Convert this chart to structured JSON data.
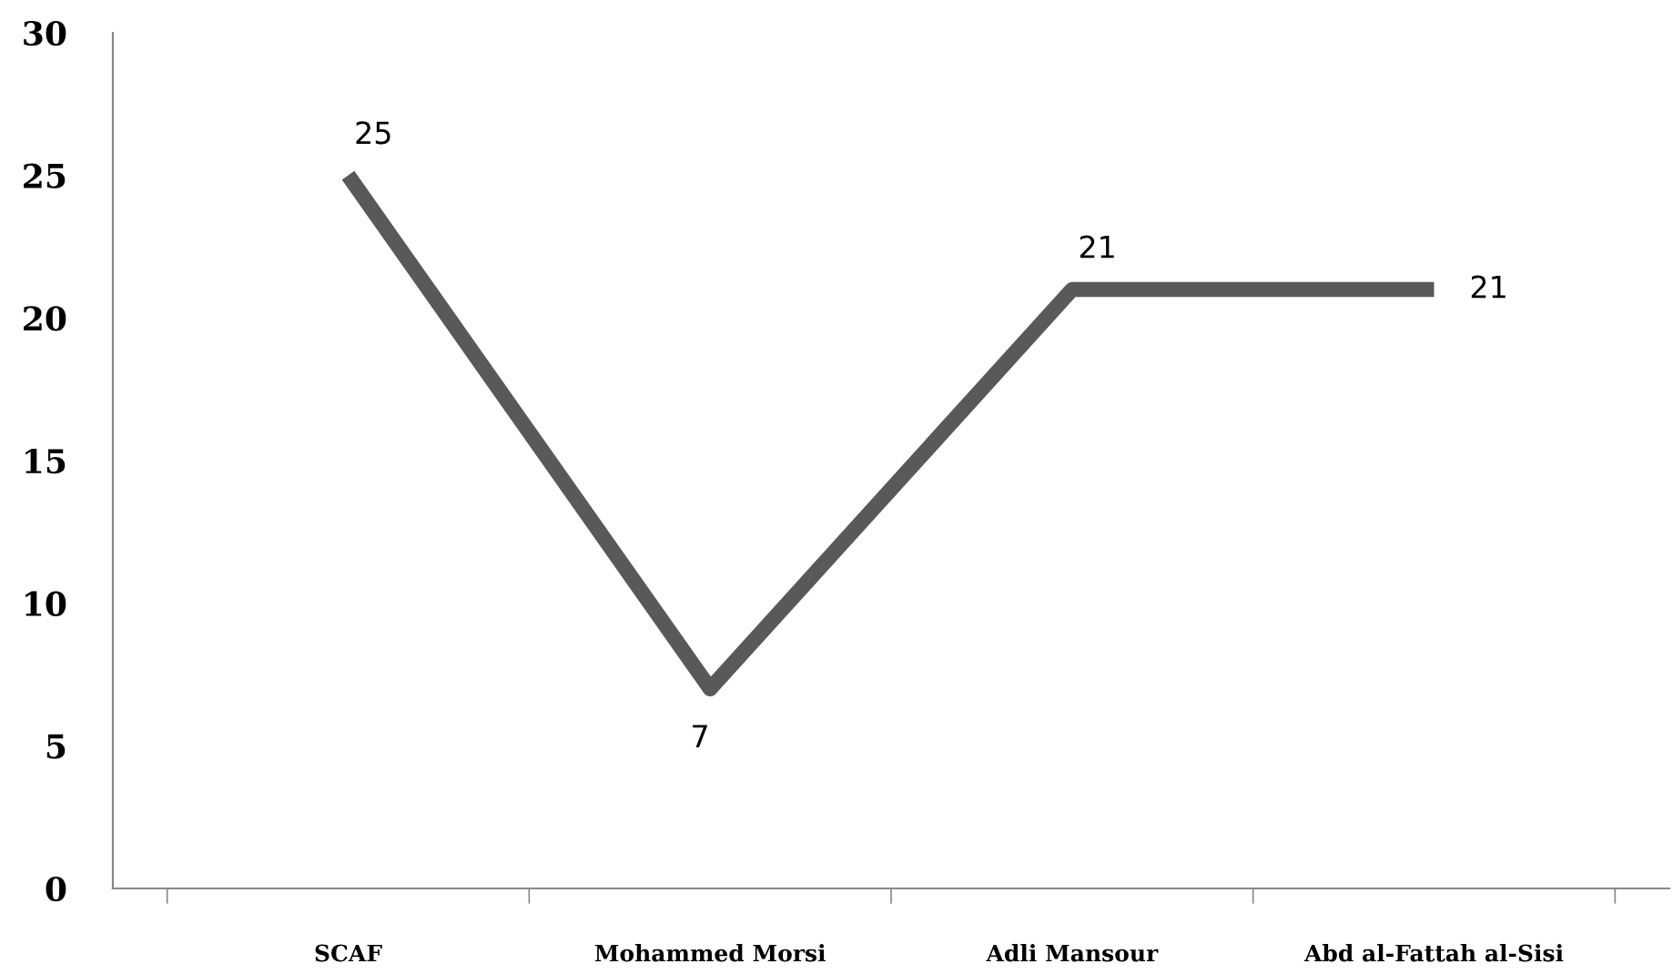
{
  "chart_data": {
    "type": "line",
    "categories": [
      "SCAF",
      "Mohammed Morsi",
      "Adli Mansour",
      "Abd al-Fattah al-Sisi"
    ],
    "series": [
      {
        "color": "#595959",
        "values": [
          25,
          7,
          21,
          21
        ]
      }
    ],
    "ylim": [
      0,
      30
    ],
    "yticks": [
      0,
      5,
      10,
      15,
      20,
      25,
      30
    ],
    "data_labels": true,
    "grid": false,
    "marker": "none",
    "line_style": "solid"
  }
}
